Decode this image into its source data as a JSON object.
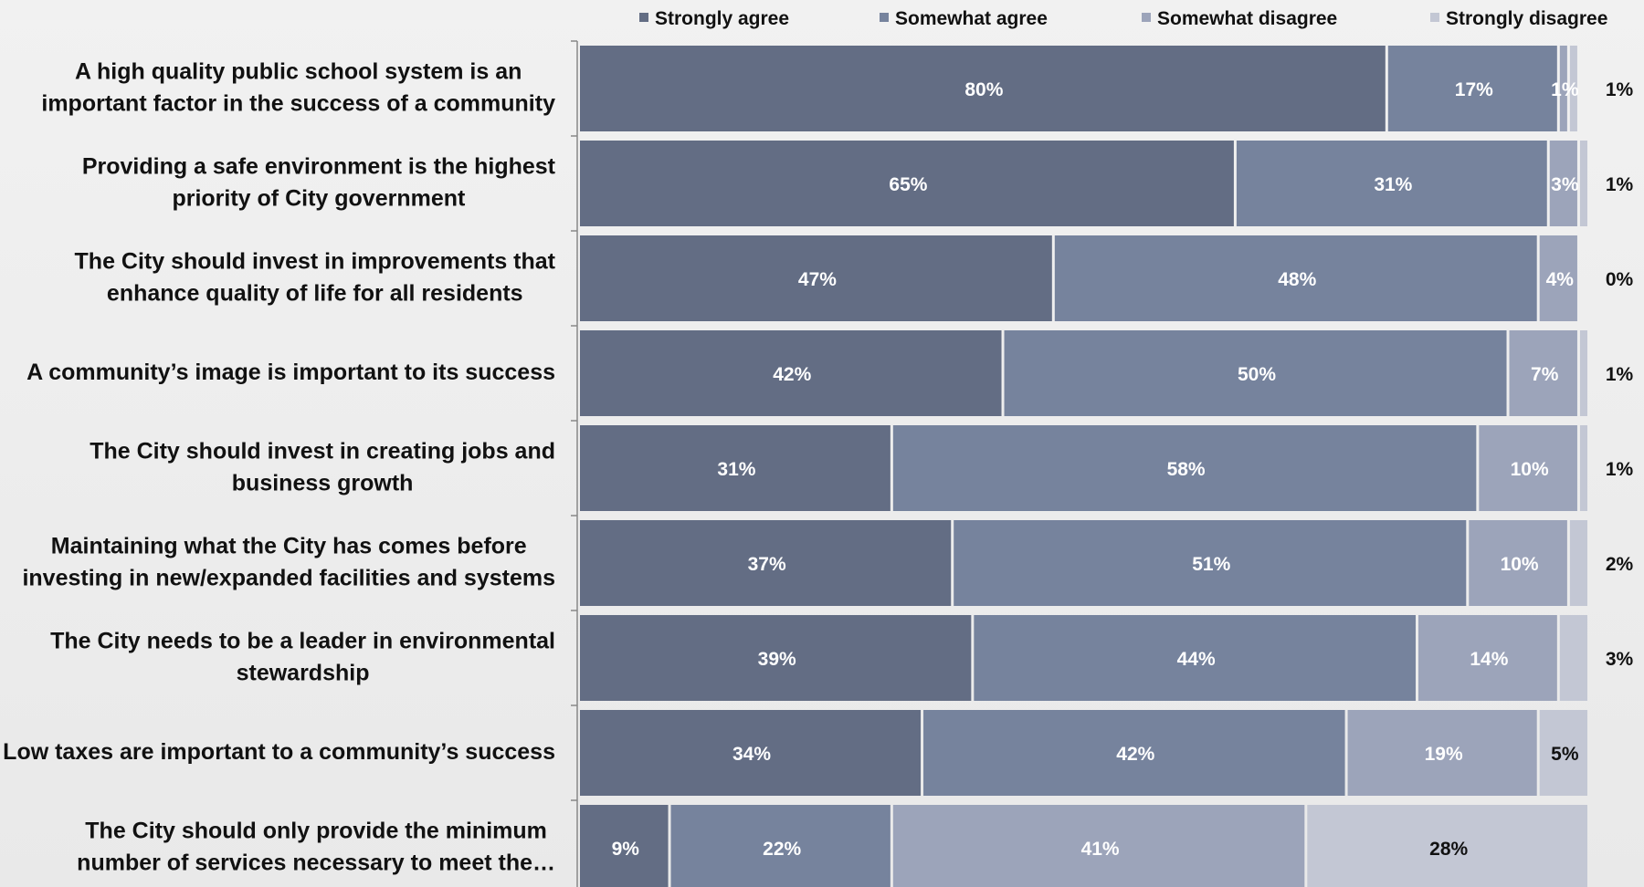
{
  "chart_data": {
    "type": "bar",
    "orientation": "horizontal",
    "stacked": true,
    "legend_position": "top",
    "xlim": [
      0,
      100
    ],
    "categories": [
      [
        "A high quality public school system is an",
        "important factor in the success of a community"
      ],
      [
        "Providing a safe environment is the highest",
        "priority of City government"
      ],
      [
        "The City should invest in improvements that",
        "enhance quality of life for all residents"
      ],
      [
        "A community’s image is important to its success"
      ],
      [
        "The City should invest in creating jobs and",
        "business growth"
      ],
      [
        "Maintaining what the City has comes before",
        "investing in new/expanded facilities and systems"
      ],
      [
        "The City needs to be a leader in environmental",
        "stewardship"
      ],
      [
        "Low taxes are important to a community’s success"
      ],
      [
        "The City should only provide the minimum",
        "number of services necessary to meet the…"
      ]
    ],
    "series": [
      {
        "name": "Strongly agree",
        "color": "#636d84",
        "label_color": "#ffffff",
        "values": [
          80,
          65,
          47,
          42,
          31,
          37,
          39,
          34,
          9
        ]
      },
      {
        "name": "Somewhat agree",
        "color": "#76839d",
        "label_color": "#ffffff",
        "values": [
          17,
          31,
          48,
          50,
          58,
          51,
          44,
          42,
          22
        ]
      },
      {
        "name": "Somewhat disagree",
        "color": "#9ca4ba",
        "label_color": "#ffffff",
        "values": [
          1,
          3,
          4,
          7,
          10,
          10,
          14,
          19,
          41
        ]
      },
      {
        "name": "Strongly disagree",
        "color": "#c3c7d4",
        "label_color": "#111111",
        "values": [
          1,
          1,
          0,
          1,
          1,
          2,
          3,
          5,
          28
        ]
      }
    ],
    "data_labels": [
      [
        "80%",
        "17%",
        "1%",
        "1%"
      ],
      [
        "65%",
        "31%",
        "3%",
        "1%"
      ],
      [
        "47%",
        "48%",
        "4%",
        "0%"
      ],
      [
        "42%",
        "50%",
        "7%",
        "1%"
      ],
      [
        "31%",
        "58%",
        "10%",
        "1%"
      ],
      [
        "37%",
        "51%",
        "10%",
        "2%"
      ],
      [
        "39%",
        "44%",
        "14%",
        "3%"
      ],
      [
        "34%",
        "42%",
        "19%",
        "5%"
      ],
      [
        "9%",
        "22%",
        "41%",
        "28%"
      ]
    ]
  }
}
